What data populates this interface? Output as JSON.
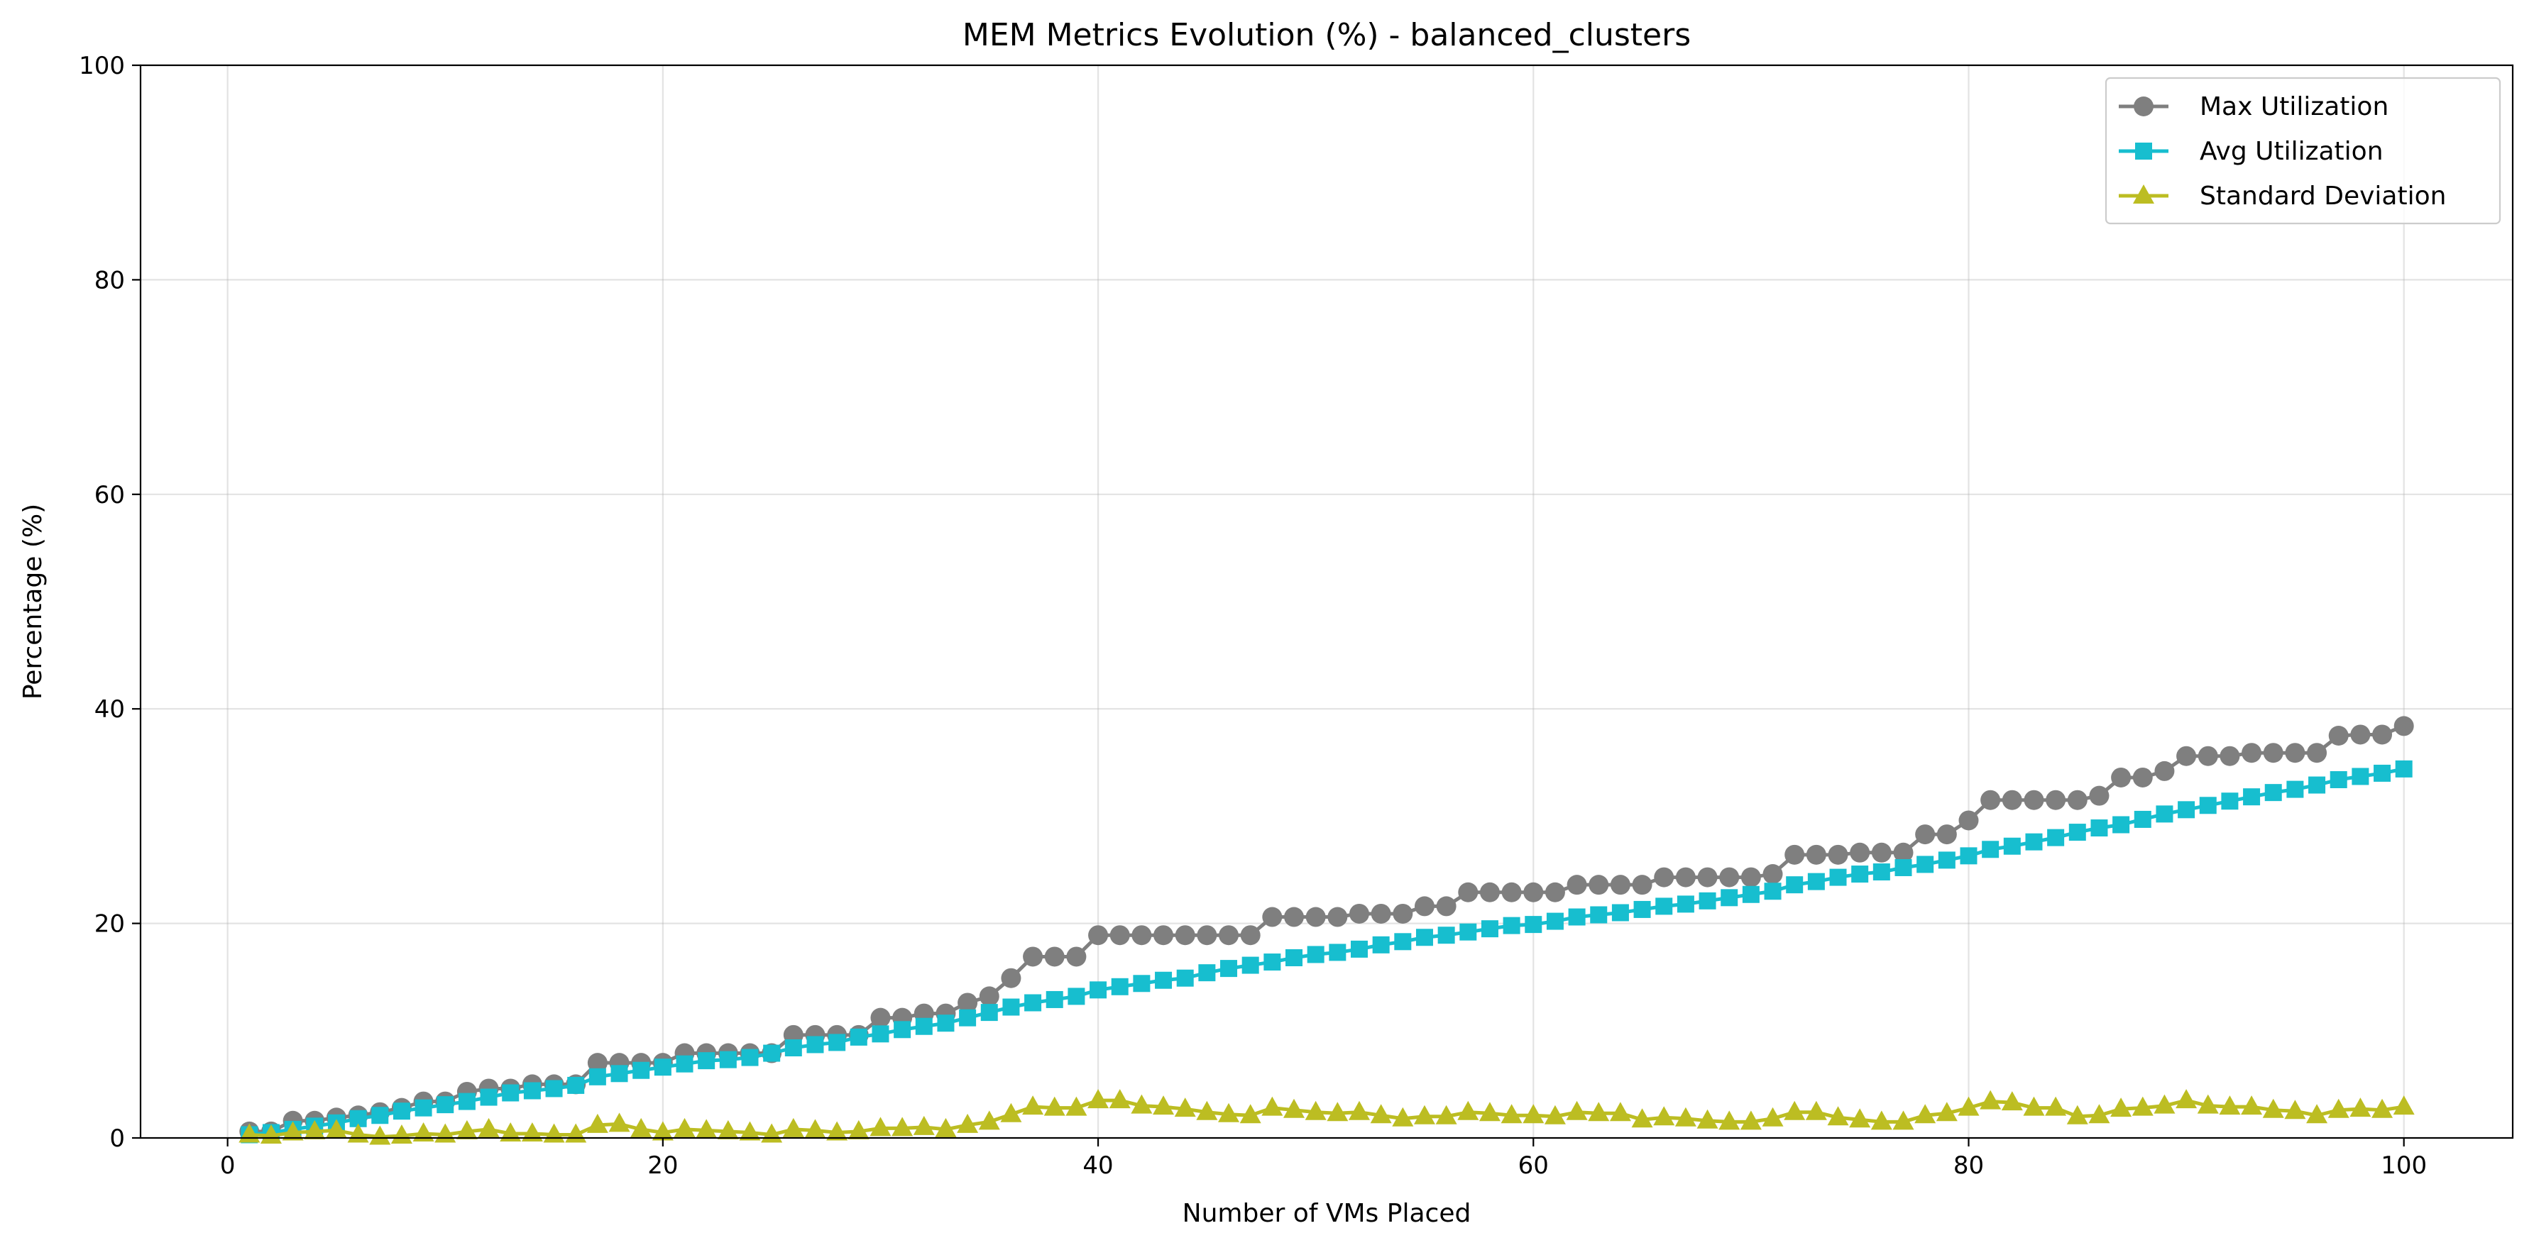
{
  "chart_data": {
    "type": "line",
    "title": "MEM Metrics Evolution (%) - balanced_clusters",
    "xlabel": "Number of VMs Placed",
    "ylabel": "Percentage (%)",
    "xlim": [
      -4,
      105
    ],
    "ylim": [
      0,
      100
    ],
    "xticks": [
      0,
      20,
      40,
      60,
      80,
      100
    ],
    "yticks": [
      0,
      20,
      40,
      60,
      80,
      100
    ],
    "grid": true,
    "legend_position": "top-right",
    "x": [
      1,
      2,
      3,
      4,
      5,
      6,
      7,
      8,
      9,
      10,
      11,
      12,
      13,
      14,
      15,
      16,
      17,
      18,
      19,
      20,
      21,
      22,
      23,
      24,
      25,
      26,
      27,
      28,
      29,
      30,
      31,
      32,
      33,
      34,
      35,
      36,
      37,
      38,
      39,
      40,
      41,
      42,
      43,
      44,
      45,
      46,
      47,
      48,
      49,
      50,
      51,
      52,
      53,
      54,
      55,
      56,
      57,
      58,
      59,
      60,
      61,
      62,
      63,
      64,
      65,
      66,
      67,
      68,
      69,
      70,
      71,
      72,
      73,
      74,
      75,
      76,
      77,
      78,
      79,
      80,
      81,
      82,
      83,
      84,
      85,
      86,
      87,
      88,
      89,
      90,
      91,
      92,
      93,
      94,
      95,
      96,
      97,
      98,
      99,
      100
    ],
    "series": [
      {
        "name": "Max Utilization",
        "color": "#7f7f7f",
        "marker": "circle",
        "values": [
          0.6,
          0.6,
          1.6,
          1.6,
          1.9,
          2.1,
          2.4,
          2.8,
          3.4,
          3.4,
          4.3,
          4.6,
          4.6,
          5.0,
          5.0,
          5.0,
          7.0,
          7.0,
          7.0,
          7.0,
          7.9,
          7.9,
          7.9,
          7.9,
          7.9,
          9.6,
          9.6,
          9.6,
          9.6,
          11.2,
          11.2,
          11.6,
          11.6,
          12.6,
          13.2,
          14.9,
          16.9,
          16.9,
          16.9,
          18.9,
          18.9,
          18.9,
          18.9,
          18.9,
          18.9,
          18.9,
          18.9,
          20.6,
          20.6,
          20.6,
          20.6,
          20.9,
          20.9,
          20.9,
          21.6,
          21.6,
          22.9,
          22.9,
          22.9,
          22.9,
          22.9,
          23.6,
          23.6,
          23.6,
          23.6,
          24.3,
          24.3,
          24.3,
          24.3,
          24.3,
          24.6,
          26.4,
          26.4,
          26.4,
          26.6,
          26.6,
          26.6,
          28.3,
          28.3,
          29.6,
          31.5,
          31.5,
          31.5,
          31.5,
          31.5,
          31.9,
          33.6,
          33.6,
          34.2,
          35.6,
          35.6,
          35.6,
          35.9,
          35.9,
          35.9,
          35.9,
          37.5,
          37.6,
          37.6,
          38.4
        ]
      },
      {
        "name": "Avg Utilization",
        "color": "#17becf",
        "marker": "square",
        "values": [
          0.3,
          0.5,
          0.8,
          1.1,
          1.4,
          1.8,
          2.1,
          2.5,
          2.8,
          3.1,
          3.4,
          3.8,
          4.2,
          4.4,
          4.6,
          4.9,
          5.7,
          6.0,
          6.3,
          6.6,
          6.9,
          7.2,
          7.3,
          7.5,
          7.9,
          8.4,
          8.7,
          8.9,
          9.4,
          9.7,
          10.1,
          10.4,
          10.7,
          11.2,
          11.7,
          12.2,
          12.6,
          12.9,
          13.2,
          13.8,
          14.1,
          14.4,
          14.7,
          14.9,
          15.4,
          15.8,
          16.1,
          16.4,
          16.8,
          17.1,
          17.3,
          17.6,
          18.0,
          18.3,
          18.7,
          18.9,
          19.2,
          19.5,
          19.8,
          19.9,
          20.2,
          20.6,
          20.8,
          21.0,
          21.3,
          21.6,
          21.8,
          22.1,
          22.4,
          22.7,
          23.0,
          23.6,
          23.9,
          24.3,
          24.6,
          24.8,
          25.2,
          25.5,
          25.9,
          26.3,
          26.9,
          27.2,
          27.6,
          28.0,
          28.5,
          28.9,
          29.2,
          29.7,
          30.2,
          30.6,
          31.0,
          31.4,
          31.8,
          32.2,
          32.5,
          32.9,
          33.4,
          33.7,
          34.0,
          34.4
        ]
      },
      {
        "name": "Standard Deviation",
        "color": "#bcbd22",
        "marker": "triangle",
        "values": [
          0.3,
          0.2,
          0.5,
          0.6,
          0.7,
          0.3,
          0.1,
          0.2,
          0.4,
          0.3,
          0.6,
          0.8,
          0.4,
          0.4,
          0.3,
          0.3,
          1.2,
          1.3,
          0.8,
          0.5,
          0.8,
          0.7,
          0.6,
          0.5,
          0.3,
          0.8,
          0.7,
          0.5,
          0.6,
          0.9,
          0.9,
          1.0,
          0.8,
          1.2,
          1.5,
          2.2,
          2.9,
          2.8,
          2.8,
          3.5,
          3.5,
          3.0,
          2.9,
          2.7,
          2.4,
          2.2,
          2.1,
          2.8,
          2.6,
          2.4,
          2.3,
          2.4,
          2.1,
          1.8,
          2.0,
          2.0,
          2.4,
          2.3,
          2.1,
          2.1,
          2.0,
          2.4,
          2.3,
          2.3,
          1.7,
          1.9,
          1.8,
          1.6,
          1.5,
          1.5,
          1.8,
          2.4,
          2.4,
          1.9,
          1.7,
          1.5,
          1.5,
          2.1,
          2.3,
          2.8,
          3.4,
          3.3,
          2.8,
          2.8,
          2.0,
          2.1,
          2.7,
          2.8,
          3.0,
          3.5,
          3.0,
          2.9,
          2.9,
          2.6,
          2.5,
          2.1,
          2.6,
          2.7,
          2.6,
          2.9
        ]
      }
    ]
  }
}
